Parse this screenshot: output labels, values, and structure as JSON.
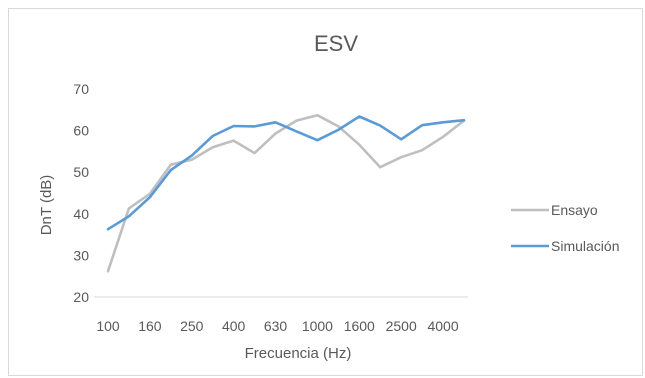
{
  "chart_data": {
    "type": "line",
    "title": "ESV",
    "xlabel": "Frecuencia (Hz)",
    "ylabel": "DnT (dB)",
    "ylim": [
      20,
      70
    ],
    "yticks": [
      20,
      30,
      40,
      50,
      60,
      70
    ],
    "grid": false,
    "legend_position": "right",
    "x": [
      100,
      125,
      160,
      200,
      250,
      315,
      400,
      500,
      630,
      800,
      1000,
      1250,
      1600,
      2000,
      2500,
      3150,
      4000,
      5000
    ],
    "x_tick_labels": [
      "100",
      "160",
      "250",
      "400",
      "630",
      "1000",
      "1600",
      "2500",
      "4000"
    ],
    "series": [
      {
        "name": "Ensayo",
        "color": "#bfbfbf",
        "values": [
          26.2,
          41.3,
          44.8,
          51.8,
          53.0,
          56.0,
          57.6,
          54.6,
          59.3,
          62.4,
          63.7,
          61.0,
          56.6,
          51.2,
          53.6,
          55.3,
          58.5,
          62.4
        ]
      },
      {
        "name": "Simulación",
        "color": "#5b9bd5",
        "values": [
          36.3,
          39.4,
          44.0,
          50.5,
          54.0,
          58.7,
          61.1,
          61.0,
          62.0,
          59.8,
          57.7,
          60.2,
          63.4,
          61.2,
          57.9,
          61.3,
          62.0,
          62.5
        ]
      }
    ]
  }
}
